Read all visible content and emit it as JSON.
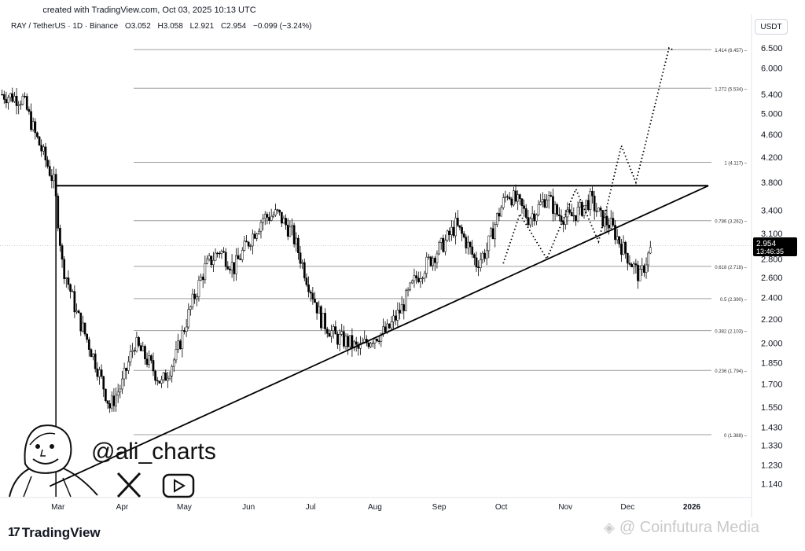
{
  "header": {
    "created": "created with TradingView.com, Oct 03, 2025 10:13 UTC",
    "symbol": "RAY / TetherUS · 1D · Binance",
    "open": "O3.052",
    "high": "H3.058",
    "low": "L2.921",
    "close": "C2.954",
    "change": "−0.099 (−3.24%)",
    "currency": "USDT"
  },
  "price_label": {
    "value": "2.954",
    "countdown": "13:46:35"
  },
  "branding": {
    "tv_logo": "TradingView",
    "handle": "@ali_charts",
    "watermark": "@ Coinfutura Media",
    "icons": [
      "x-logo-icon",
      "youtube-icon",
      "avatar-caricature",
      "tradingview-logo-icon"
    ]
  },
  "colors": {
    "candles": "#000000",
    "fib_lines": "#9e9e9e",
    "price_tag": "#000000"
  },
  "chart_data": {
    "type": "candlestick",
    "title": "",
    "xlabel": "",
    "ylabel": "",
    "y_axis_ticks": [
      "6.500",
      "6.000",
      "5.400",
      "5.000",
      "4.600",
      "4.200",
      "3.800",
      "3.400",
      "3.100",
      "2.800",
      "2.600",
      "2.400",
      "2.200",
      "2.000",
      "1.850",
      "1.700",
      "1.550",
      "1.430",
      "1.330",
      "1.230",
      "1.140"
    ],
    "x_axis_ticks": [
      "Mar",
      "Apr",
      "May",
      "Jun",
      "Jul",
      "Aug",
      "Sep",
      "Oct",
      "Nov",
      "Dec",
      "2026"
    ],
    "ylim": [
      1.09,
      6.9
    ],
    "grid": false,
    "fib_levels": [
      {
        "label": "1.414 (6.457)",
        "value": 6.457
      },
      {
        "label": "1.272 (5.534)",
        "value": 5.534
      },
      {
        "label": "1 (4.117)",
        "value": 4.117
      },
      {
        "label": "0.786 (3.262)",
        "value": 3.262
      },
      {
        "label": "0.618 (2.718)",
        "value": 2.718
      },
      {
        "label": "0.5 (2.390)",
        "value": 2.39
      },
      {
        "label": "0.382 (2.103)",
        "value": 2.103
      },
      {
        "label": "0.236 (1.794)",
        "value": 1.794
      },
      {
        "label": "0 (1.388)",
        "value": 1.388
      }
    ],
    "resistance": {
      "value": 3.75,
      "start": "2025-02-28",
      "end": "2026-01-09"
    },
    "support": {
      "start": [
        "2025-02-25",
        1.13
      ],
      "end": [
        "2026-01-09",
        3.75
      ]
    },
    "close_path": [
      [
        "2025-02-02",
        5.4
      ],
      [
        "2025-02-12",
        5.3
      ],
      [
        "2025-02-18",
        4.6
      ],
      [
        "2025-02-27",
        3.8
      ],
      [
        "2025-03-03",
        2.75
      ],
      [
        "2025-03-10",
        2.25
      ],
      [
        "2025-03-18",
        1.9
      ],
      [
        "2025-03-26",
        1.55
      ],
      [
        "2025-04-01",
        1.7
      ],
      [
        "2025-04-07",
        2.0
      ],
      [
        "2025-04-14",
        1.85
      ],
      [
        "2025-04-20",
        1.7
      ],
      [
        "2025-04-27",
        1.9
      ],
      [
        "2025-05-04",
        2.3
      ],
      [
        "2025-05-11",
        2.7
      ],
      [
        "2025-05-18",
        2.9
      ],
      [
        "2025-05-25",
        2.7
      ],
      [
        "2025-06-01",
        3.0
      ],
      [
        "2025-06-08",
        3.3
      ],
      [
        "2025-06-15",
        3.35
      ],
      [
        "2025-06-22",
        3.1
      ],
      [
        "2025-06-29",
        2.6
      ],
      [
        "2025-07-06",
        2.2
      ],
      [
        "2025-07-13",
        2.05
      ],
      [
        "2025-07-20",
        2.0
      ],
      [
        "2025-07-24",
        1.95
      ],
      [
        "2025-07-31",
        2.05
      ],
      [
        "2025-08-07",
        2.1
      ],
      [
        "2025-08-14",
        2.3
      ],
      [
        "2025-08-21",
        2.6
      ],
      [
        "2025-08-28",
        2.8
      ],
      [
        "2025-09-04",
        3.0
      ],
      [
        "2025-09-09",
        3.2
      ],
      [
        "2025-09-14",
        3.0
      ],
      [
        "2025-09-19",
        2.75
      ],
      [
        "2025-09-24",
        2.9
      ],
      [
        "2025-09-29",
        3.3
      ],
      [
        "2025-10-04",
        3.65
      ],
      [
        "2025-10-09",
        3.5
      ],
      [
        "2025-10-14",
        3.3
      ],
      [
        "2025-10-18",
        3.4
      ],
      [
        "2025-10-23",
        3.6
      ],
      [
        "2025-10-28",
        3.35
      ],
      [
        "2025-11-03",
        3.3
      ],
      [
        "2025-11-08",
        3.4
      ],
      [
        "2025-11-13",
        3.55
      ],
      [
        "2025-11-18",
        3.3
      ],
      [
        "2025-11-23",
        3.2
      ],
      [
        "2025-11-28",
        2.95
      ],
      [
        "2025-12-03",
        2.75
      ],
      [
        "2025-12-07",
        2.6
      ],
      [
        "2025-12-12",
        2.9
      ]
    ],
    "projection": [
      [
        "2025-10-02",
        2.75
      ],
      [
        "2025-10-10",
        3.35
      ],
      [
        "2025-10-23",
        2.8
      ],
      [
        "2025-11-06",
        3.7
      ],
      [
        "2025-11-17",
        3.0
      ],
      [
        "2025-11-28",
        4.4
      ],
      [
        "2025-12-05",
        3.8
      ],
      [
        "2025-12-21",
        6.5
      ],
      [
        "2025-12-23",
        6.45
      ]
    ]
  }
}
